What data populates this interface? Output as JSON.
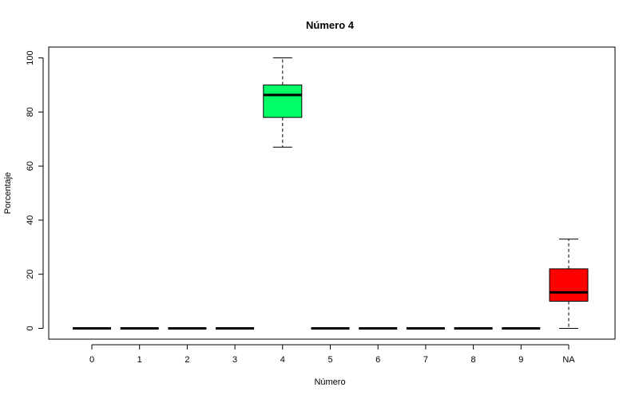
{
  "chart_data": {
    "type": "boxplot",
    "title": "Número 4",
    "xlabel": "Número",
    "ylabel": "Porcentaje",
    "ylim": [
      -4,
      104
    ],
    "yticks": [
      0,
      20,
      40,
      60,
      80,
      100
    ],
    "categories": [
      "0",
      "1",
      "2",
      "3",
      "4",
      "5",
      "6",
      "7",
      "8",
      "9",
      "NA"
    ],
    "boxes": [
      {
        "category": "0",
        "min": 0,
        "q1": 0,
        "median": 0,
        "q3": 0,
        "max": 0,
        "color": "#ffffff"
      },
      {
        "category": "1",
        "min": 0,
        "q1": 0,
        "median": 0,
        "q3": 0,
        "max": 0,
        "color": "#ffffff"
      },
      {
        "category": "2",
        "min": 0,
        "q1": 0,
        "median": 0,
        "q3": 0,
        "max": 0,
        "color": "#ffffff"
      },
      {
        "category": "3",
        "min": 0,
        "q1": 0,
        "median": 0,
        "q3": 0,
        "max": 0,
        "color": "#ffffff"
      },
      {
        "category": "4",
        "min": 67,
        "q1": 78,
        "median": 86.3,
        "q3": 90,
        "max": 100,
        "color": "#00ff66"
      },
      {
        "category": "5",
        "min": 0,
        "q1": 0,
        "median": 0,
        "q3": 0,
        "max": 0,
        "color": "#ffffff"
      },
      {
        "category": "6",
        "min": 0,
        "q1": 0,
        "median": 0,
        "q3": 0,
        "max": 0,
        "color": "#ffffff"
      },
      {
        "category": "7",
        "min": 0,
        "q1": 0,
        "median": 0,
        "q3": 0,
        "max": 0,
        "color": "#ffffff"
      },
      {
        "category": "8",
        "min": 0,
        "q1": 0,
        "median": 0,
        "q3": 0,
        "max": 0,
        "color": "#ffffff"
      },
      {
        "category": "9",
        "min": 0,
        "q1": 0,
        "median": 0,
        "q3": 0,
        "max": 0,
        "color": "#ffffff"
      },
      {
        "category": "NA",
        "min": 0,
        "q1": 10,
        "median": 13.3,
        "q3": 22,
        "max": 33,
        "color": "#ff0000"
      }
    ]
  }
}
